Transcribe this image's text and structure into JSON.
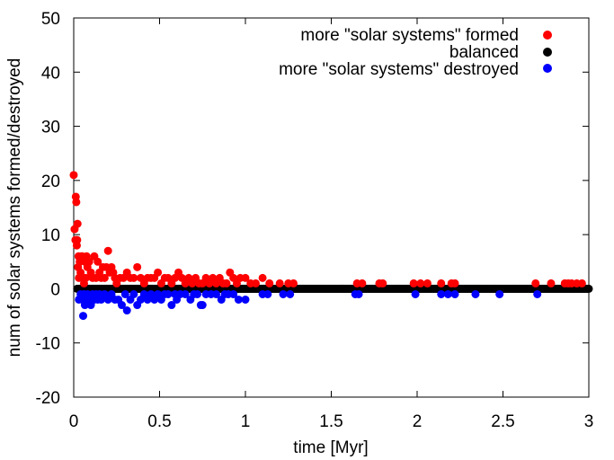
{
  "chart_data": {
    "type": "scatter",
    "xlabel": "time [Myr]",
    "ylabel": "num of solar systems formed/destroyed",
    "xlim": [
      0,
      3
    ],
    "ylim": [
      -20,
      50
    ],
    "xticks": [
      0,
      0.5,
      1,
      1.5,
      2,
      2.5,
      3
    ],
    "xtick_labels": [
      "0",
      "0.5",
      "1",
      "1.5",
      "2",
      "2.5",
      "3"
    ],
    "yticks": [
      -20,
      -10,
      0,
      10,
      20,
      30,
      40,
      50
    ],
    "ytick_labels": [
      "-20",
      "-10",
      "0",
      "10",
      "20",
      "30",
      "40",
      "50"
    ],
    "grid": false,
    "legend_position": "top-right",
    "series": [
      {
        "name": "more \"solar systems\" formed",
        "color": "#ff0000",
        "x": [
          0.0,
          0.005,
          0.01,
          0.012,
          0.015,
          0.018,
          0.02,
          0.022,
          0.025,
          0.028,
          0.03,
          0.035,
          0.04,
          0.045,
          0.05,
          0.055,
          0.06,
          0.065,
          0.07,
          0.075,
          0.08,
          0.09,
          0.1,
          0.11,
          0.12,
          0.13,
          0.14,
          0.15,
          0.16,
          0.17,
          0.18,
          0.19,
          0.2,
          0.21,
          0.22,
          0.23,
          0.24,
          0.25,
          0.27,
          0.29,
          0.31,
          0.33,
          0.35,
          0.37,
          0.39,
          0.41,
          0.43,
          0.45,
          0.47,
          0.49,
          0.51,
          0.53,
          0.55,
          0.57,
          0.59,
          0.61,
          0.63,
          0.65,
          0.67,
          0.69,
          0.71,
          0.73,
          0.75,
          0.77,
          0.79,
          0.81,
          0.83,
          0.85,
          0.87,
          0.89,
          0.91,
          0.93,
          0.95,
          0.97,
          1.0,
          1.03,
          1.06,
          1.1,
          1.14,
          1.2,
          1.25,
          1.28,
          1.65,
          1.68,
          1.78,
          1.8,
          1.98,
          2.02,
          2.06,
          2.14,
          2.2,
          2.22,
          2.69,
          2.78,
          2.86,
          2.88,
          2.9,
          2.93,
          2.96
        ],
        "y": [
          21,
          11,
          9,
          17,
          16,
          8,
          9,
          12,
          4,
          6,
          2,
          5,
          3,
          6,
          6,
          2,
          1,
          5,
          2,
          6,
          4,
          5,
          3,
          2,
          6,
          2,
          5,
          3,
          2,
          4,
          2,
          4,
          7,
          3,
          4,
          3,
          2,
          1,
          2,
          2,
          3,
          2,
          2,
          4,
          2,
          1,
          2,
          2,
          2,
          3,
          1,
          2,
          2,
          1,
          2,
          3,
          2,
          1,
          2,
          1,
          2,
          1,
          1,
          2,
          1,
          2,
          1,
          2,
          1,
          1,
          3,
          2,
          1,
          2,
          2,
          1,
          1,
          2,
          1,
          1,
          1,
          1,
          1,
          1,
          1,
          1,
          1,
          1,
          1,
          1,
          1,
          1,
          1,
          1,
          1,
          1,
          1,
          1,
          1
        ]
      },
      {
        "name": "balanced",
        "color": "#000000",
        "x_range": [
          0.02,
          3.0
        ],
        "y": 0
      },
      {
        "name": "more \"solar systems\" destroyed",
        "color": "#0000ff",
        "x": [
          0.03,
          0.04,
          0.05,
          0.055,
          0.06,
          0.065,
          0.07,
          0.08,
          0.09,
          0.1,
          0.11,
          0.12,
          0.13,
          0.14,
          0.15,
          0.16,
          0.18,
          0.2,
          0.22,
          0.24,
          0.26,
          0.28,
          0.3,
          0.31,
          0.33,
          0.35,
          0.37,
          0.39,
          0.41,
          0.43,
          0.45,
          0.47,
          0.49,
          0.51,
          0.53,
          0.55,
          0.57,
          0.59,
          0.6,
          0.62,
          0.65,
          0.68,
          0.7,
          0.72,
          0.74,
          0.75,
          0.77,
          0.8,
          0.83,
          0.86,
          0.88,
          0.9,
          0.93,
          0.96,
          1.0,
          1.1,
          1.13,
          1.22,
          1.26,
          1.64,
          1.66,
          1.99,
          2.14,
          2.18,
          2.22,
          2.34,
          2.48,
          2.7
        ],
        "y": [
          -2,
          -1,
          -2,
          -5,
          -1,
          -3,
          -2,
          -1,
          -2,
          -3,
          -1,
          -2,
          -1,
          -2,
          -1,
          -2,
          -1,
          -2,
          -1,
          -2,
          -2,
          -3,
          -1,
          -4,
          -2,
          -1,
          -3,
          -2,
          -1,
          -2,
          -1,
          -2,
          -1,
          -2,
          -1,
          -1,
          -3,
          -1,
          -2,
          -1,
          -1,
          -2,
          -1,
          -1,
          -3,
          -3,
          -1,
          -1,
          -1,
          -2,
          -1,
          -1,
          -1,
          -2,
          -2,
          -1,
          -1,
          -1,
          -1,
          -1,
          -1,
          -1,
          -1,
          -1,
          -1,
          -1,
          -1,
          -1
        ]
      }
    ]
  }
}
